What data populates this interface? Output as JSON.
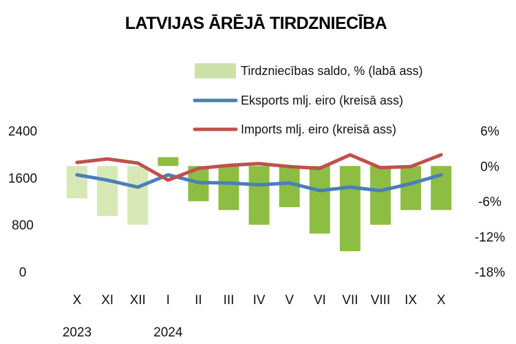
{
  "chart_data": {
    "type": "bar-line-combo",
    "title": "LATVIJAS ĀRĒJĀ TIRDZNIECĪBA",
    "categories": [
      "X",
      "XI",
      "XII",
      "I",
      "II",
      "III",
      "IV",
      "V",
      "VI",
      "VII",
      "VIII",
      "IX",
      "X"
    ],
    "year_labels": [
      {
        "label": "2023",
        "category_index": 0
      },
      {
        "label": "2024",
        "category_index": 3
      }
    ],
    "left_axis": {
      "ticks": [
        "2400",
        "1600",
        "800",
        "0"
      ],
      "tick_values": [
        2400,
        1600,
        800,
        0
      ],
      "ylim": [
        0,
        2400
      ]
    },
    "right_axis": {
      "ticks": [
        "6%",
        "0%",
        "-6%",
        "-12%",
        "-18%"
      ],
      "tick_values": [
        6,
        0,
        -6,
        -12,
        -18
      ],
      "ylim": [
        -18,
        6
      ]
    },
    "series": [
      {
        "name": "Tirdzniecības saldo, % (labā ass)",
        "type": "bar",
        "axis": "right",
        "values": [
          -5.5,
          -8.5,
          -10,
          1.5,
          -6,
          -7.5,
          -10,
          -7,
          -11.5,
          -14.5,
          -10,
          -7.5,
          -7.5
        ],
        "colors": [
          "#d6e8b6",
          "#d6e8b6",
          "#d6e8b6",
          "#8dbd42",
          "#8dbd42",
          "#8dbd42",
          "#8dbd42",
          "#8dbd42",
          "#8dbd42",
          "#8dbd42",
          "#8dbd42",
          "#8dbd42",
          "#8dbd42"
        ]
      },
      {
        "name": "Eksports mlj. eiro (kreisā ass)",
        "type": "line",
        "axis": "left",
        "color": "#4a7ebb",
        "values": [
          1650,
          1560,
          1440,
          1650,
          1520,
          1510,
          1480,
          1510,
          1380,
          1440,
          1380,
          1500,
          1650
        ]
      },
      {
        "name": "Imports mlj. eiro (kreisā ass)",
        "type": "line",
        "axis": "left",
        "color": "#c0504d",
        "values": [
          1860,
          1920,
          1850,
          1560,
          1760,
          1810,
          1840,
          1790,
          1760,
          1990,
          1770,
          1790,
          1990
        ]
      }
    ],
    "legend_position": "top-center"
  }
}
